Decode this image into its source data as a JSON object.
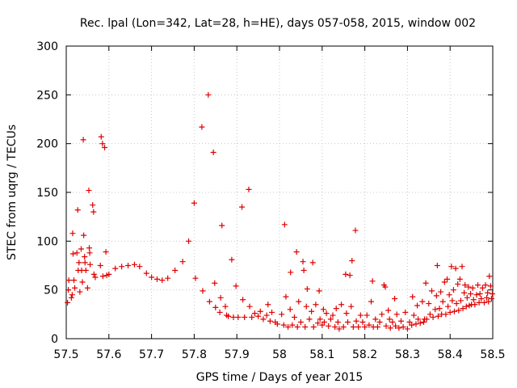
{
  "chart_data": {
    "type": "scatter",
    "title": "Rec. lpal (Lon=342, Lat=28, h=HE), days 057-058, 2015, window 002",
    "xlabel": "GPS time / Days of year 2015",
    "ylabel": "STEC from uqrg / TECUs",
    "xlim": [
      57.5,
      58.5
    ],
    "ylim": [
      0,
      300
    ],
    "xticks": [
      57.5,
      57.6,
      57.7,
      57.8,
      57.9,
      58.0,
      58.1,
      58.2,
      58.3,
      58.4,
      58.5
    ],
    "xtick_labels": [
      "57.5",
      "57.6",
      "57.7",
      "57.8",
      "57.9",
      "58",
      "58.1",
      "58.2",
      "58.3",
      "58.4",
      "58.5"
    ],
    "yticks": [
      0,
      50,
      100,
      150,
      200,
      250,
      300
    ],
    "ytick_labels": [
      "0",
      "50",
      "100",
      "150",
      "200",
      "250",
      "300"
    ],
    "grid": true,
    "marker": "+",
    "color": "#e00000",
    "points": [
      [
        57.503,
        37
      ],
      [
        57.505,
        50
      ],
      [
        57.506,
        60
      ],
      [
        57.512,
        42
      ],
      [
        57.514,
        45
      ],
      [
        57.515,
        108
      ],
      [
        57.516,
        87
      ],
      [
        57.518,
        60
      ],
      [
        57.52,
        52
      ],
      [
        57.525,
        88
      ],
      [
        57.527,
        132
      ],
      [
        57.528,
        70
      ],
      [
        57.53,
        78
      ],
      [
        57.532,
        48
      ],
      [
        57.535,
        92
      ],
      [
        57.536,
        70
      ],
      [
        57.538,
        58
      ],
      [
        57.54,
        204
      ],
      [
        57.541,
        106
      ],
      [
        57.543,
        84
      ],
      [
        57.544,
        78
      ],
      [
        57.546,
        70
      ],
      [
        57.55,
        52
      ],
      [
        57.553,
        152
      ],
      [
        57.554,
        93
      ],
      [
        57.555,
        88
      ],
      [
        57.556,
        76
      ],
      [
        57.562,
        137
      ],
      [
        57.564,
        130
      ],
      [
        57.565,
        66
      ],
      [
        57.568,
        63
      ],
      [
        57.58,
        75
      ],
      [
        57.582,
        207
      ],
      [
        57.585,
        200
      ],
      [
        57.586,
        64
      ],
      [
        57.59,
        196
      ],
      [
        57.593,
        89
      ],
      [
        57.595,
        65
      ],
      [
        57.6,
        66
      ],
      [
        57.615,
        72
      ],
      [
        57.63,
        74
      ],
      [
        57.645,
        75
      ],
      [
        57.66,
        76
      ],
      [
        57.672,
        74
      ],
      [
        57.688,
        67
      ],
      [
        57.7,
        63
      ],
      [
        57.713,
        61
      ],
      [
        57.725,
        60
      ],
      [
        57.738,
        62
      ],
      [
        57.755,
        70
      ],
      [
        57.773,
        79
      ],
      [
        57.787,
        100
      ],
      [
        57.8,
        139
      ],
      [
        57.803,
        62
      ],
      [
        57.818,
        217
      ],
      [
        57.82,
        49
      ],
      [
        57.833,
        250
      ],
      [
        57.836,
        38
      ],
      [
        57.845,
        191
      ],
      [
        57.848,
        57
      ],
      [
        57.85,
        32
      ],
      [
        57.86,
        27
      ],
      [
        57.862,
        42
      ],
      [
        57.865,
        116
      ],
      [
        57.873,
        33
      ],
      [
        57.876,
        24
      ],
      [
        57.88,
        23
      ],
      [
        57.888,
        81
      ],
      [
        57.892,
        22
      ],
      [
        57.898,
        54
      ],
      [
        57.903,
        22
      ],
      [
        57.912,
        135
      ],
      [
        57.914,
        40
      ],
      [
        57.918,
        22
      ],
      [
        57.928,
        153
      ],
      [
        57.93,
        33
      ],
      [
        57.935,
        22
      ],
      [
        57.942,
        26
      ],
      [
        57.95,
        23
      ],
      [
        57.955,
        28
      ],
      [
        57.962,
        20
      ],
      [
        57.97,
        24
      ],
      [
        57.973,
        35
      ],
      [
        57.978,
        18
      ],
      [
        57.982,
        27
      ],
      [
        57.99,
        17
      ],
      [
        57.995,
        15
      ],
      [
        58.005,
        25
      ],
      [
        58.01,
        14
      ],
      [
        58.012,
        117
      ],
      [
        58.015,
        43
      ],
      [
        58.02,
        12
      ],
      [
        58.025,
        30
      ],
      [
        58.026,
        68
      ],
      [
        58.03,
        14
      ],
      [
        58.035,
        22
      ],
      [
        58.04,
        89
      ],
      [
        58.042,
        12
      ],
      [
        58.045,
        38
      ],
      [
        58.05,
        17
      ],
      [
        58.055,
        79
      ],
      [
        58.057,
        70
      ],
      [
        58.06,
        12
      ],
      [
        58.063,
        33
      ],
      [
        58.065,
        51
      ],
      [
        58.07,
        20
      ],
      [
        58.075,
        28
      ],
      [
        58.078,
        78
      ],
      [
        58.08,
        12
      ],
      [
        58.085,
        35
      ],
      [
        58.09,
        16
      ],
      [
        58.093,
        49
      ],
      [
        58.095,
        20
      ],
      [
        58.1,
        14
      ],
      [
        58.103,
        30
      ],
      [
        58.105,
        17
      ],
      [
        58.11,
        26
      ],
      [
        58.115,
        13
      ],
      [
        58.12,
        20
      ],
      [
        58.125,
        24
      ],
      [
        58.13,
        12
      ],
      [
        58.133,
        31
      ],
      [
        58.137,
        17
      ],
      [
        58.14,
        10
      ],
      [
        58.145,
        35
      ],
      [
        58.15,
        12
      ],
      [
        58.155,
        66
      ],
      [
        58.157,
        26
      ],
      [
        58.16,
        17
      ],
      [
        58.165,
        65
      ],
      [
        58.168,
        33
      ],
      [
        58.17,
        80
      ],
      [
        58.173,
        12
      ],
      [
        58.178,
        111
      ],
      [
        58.18,
        18
      ],
      [
        58.185,
        12
      ],
      [
        58.19,
        24
      ],
      [
        58.195,
        17
      ],
      [
        58.2,
        12
      ],
      [
        58.205,
        24
      ],
      [
        58.21,
        14
      ],
      [
        58.215,
        38
      ],
      [
        58.218,
        59
      ],
      [
        58.22,
        12
      ],
      [
        58.225,
        20
      ],
      [
        58.23,
        12
      ],
      [
        58.235,
        17
      ],
      [
        58.24,
        25
      ],
      [
        58.245,
        55
      ],
      [
        58.248,
        53
      ],
      [
        58.25,
        13
      ],
      [
        58.255,
        29
      ],
      [
        58.258,
        20
      ],
      [
        58.26,
        11
      ],
      [
        58.265,
        17
      ],
      [
        58.27,
        41
      ],
      [
        58.272,
        13
      ],
      [
        58.275,
        25
      ],
      [
        58.28,
        11
      ],
      [
        58.285,
        18
      ],
      [
        58.29,
        12
      ],
      [
        58.295,
        27
      ],
      [
        58.3,
        10
      ],
      [
        58.305,
        17
      ],
      [
        58.31,
        14
      ],
      [
        58.312,
        43
      ],
      [
        58.315,
        24
      ],
      [
        58.32,
        15
      ],
      [
        58.323,
        34
      ],
      [
        58.325,
        20
      ],
      [
        58.33,
        16
      ],
      [
        58.335,
        38
      ],
      [
        58.338,
        17
      ],
      [
        58.34,
        20
      ],
      [
        58.343,
        57
      ],
      [
        58.345,
        20
      ],
      [
        58.35,
        36
      ],
      [
        58.353,
        25
      ],
      [
        58.357,
        49
      ],
      [
        58.36,
        22
      ],
      [
        58.365,
        30
      ],
      [
        58.368,
        44
      ],
      [
        58.37,
        75
      ],
      [
        58.372,
        23
      ],
      [
        58.375,
        31
      ],
      [
        58.378,
        48
      ],
      [
        58.38,
        25
      ],
      [
        58.383,
        38
      ],
      [
        58.387,
        58
      ],
      [
        58.39,
        25
      ],
      [
        58.393,
        61
      ],
      [
        58.395,
        33
      ],
      [
        58.398,
        45
      ],
      [
        58.4,
        27
      ],
      [
        58.403,
        74
      ],
      [
        58.405,
        39
      ],
      [
        58.408,
        50
      ],
      [
        58.41,
        28
      ],
      [
        58.413,
        72
      ],
      [
        58.415,
        36
      ],
      [
        58.418,
        56
      ],
      [
        58.42,
        29
      ],
      [
        58.423,
        61
      ],
      [
        58.425,
        39
      ],
      [
        58.428,
        74
      ],
      [
        58.43,
        31
      ],
      [
        58.433,
        47
      ],
      [
        58.435,
        55
      ],
      [
        58.438,
        33
      ],
      [
        58.44,
        42
      ],
      [
        58.443,
        53
      ],
      [
        58.445,
        34
      ],
      [
        58.448,
        46
      ],
      [
        58.45,
        35
      ],
      [
        58.453,
        52
      ],
      [
        58.455,
        40
      ],
      [
        58.458,
        35
      ],
      [
        58.462,
        45
      ],
      [
        58.465,
        55
      ],
      [
        58.468,
        37
      ],
      [
        58.47,
        46
      ],
      [
        58.473,
        41
      ],
      [
        58.476,
        52
      ],
      [
        58.48,
        37
      ],
      [
        58.483,
        55
      ],
      [
        58.486,
        42
      ],
      [
        58.488,
        47
      ],
      [
        58.49,
        38
      ],
      [
        58.492,
        64
      ],
      [
        58.495,
        54
      ],
      [
        58.497,
        41
      ],
      [
        58.499,
        46
      ]
    ]
  }
}
